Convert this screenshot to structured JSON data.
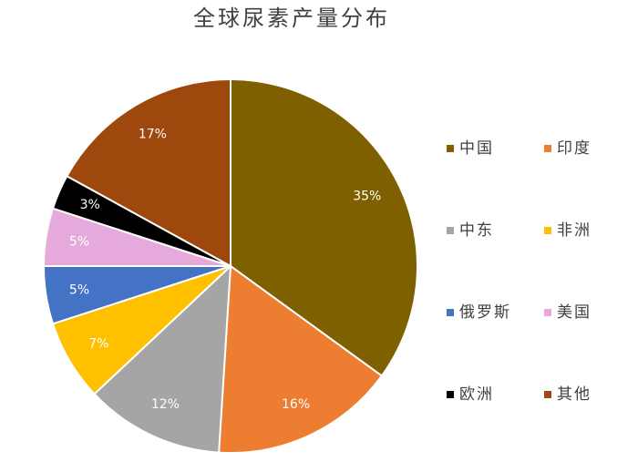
{
  "chart_data": {
    "type": "pie",
    "title": "全球尿素产量分布",
    "categories": [
      "中国",
      "印度",
      "中东",
      "非洲",
      "俄罗斯",
      "美国",
      "欧洲",
      "其他"
    ],
    "values": [
      35,
      16,
      12,
      7,
      5,
      5,
      3,
      17
    ],
    "value_labels": [
      "35%",
      "16%",
      "12%",
      "7%",
      "5%",
      "5%",
      "3%",
      "17%"
    ],
    "colors": [
      "#7f6000",
      "#ed7d31",
      "#a5a5a5",
      "#ffc000",
      "#4472c4",
      "#e6a9dc",
      "#000000",
      "#9e480e"
    ],
    "legend": "right"
  }
}
